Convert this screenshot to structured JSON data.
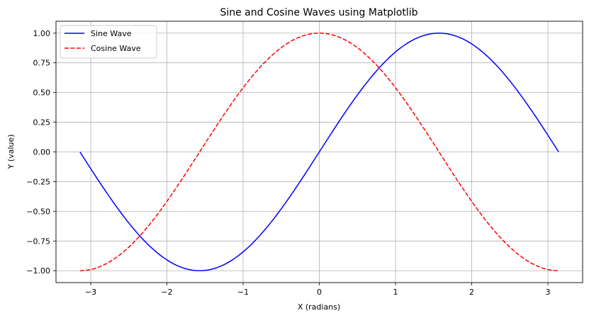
{
  "chart_data": {
    "type": "line",
    "title": "Sine and Cosine Waves using Matplotlib",
    "xlabel": "X (radians)",
    "ylabel": "Y (value)",
    "xlim": [
      -3.456,
      3.456
    ],
    "ylim": [
      -1.1,
      1.1
    ],
    "grid": true,
    "legend_position": "top-left",
    "x_range": [
      -3.14159,
      3.14159
    ],
    "x_ticks": [
      -3,
      -2,
      -1,
      0,
      1,
      2,
      3
    ],
    "x_tick_labels": [
      "−3",
      "−2",
      "−1",
      "0",
      "1",
      "2",
      "3"
    ],
    "y_ticks": [
      -1.0,
      -0.75,
      -0.5,
      -0.25,
      0.0,
      0.25,
      0.5,
      0.75,
      1.0
    ],
    "y_tick_labels": [
      "−1.00",
      "−0.75",
      "−0.50",
      "−0.25",
      "0.00",
      "0.25",
      "0.50",
      "0.75",
      "1.00"
    ],
    "series": [
      {
        "name": "Sine Wave",
        "function": "sin",
        "color": "#0000ff",
        "line_style": "solid",
        "x": [
          -3.1416,
          -2.3562,
          -1.5708,
          -0.7854,
          0.0,
          0.7854,
          1.5708,
          2.3562,
          3.1416
        ],
        "values": [
          0.0,
          -0.7071,
          -1.0,
          -0.7071,
          0.0,
          0.7071,
          1.0,
          0.7071,
          0.0
        ]
      },
      {
        "name": "Cosine Wave",
        "function": "cos",
        "color": "#ff0000",
        "line_style": "dashed",
        "x": [
          -3.1416,
          -2.3562,
          -1.5708,
          -0.7854,
          0.0,
          0.7854,
          1.5708,
          2.3562,
          3.1416
        ],
        "values": [
          -1.0,
          -0.7071,
          0.0,
          0.7071,
          1.0,
          0.7071,
          0.0,
          -0.7071,
          -1.0
        ]
      }
    ]
  }
}
